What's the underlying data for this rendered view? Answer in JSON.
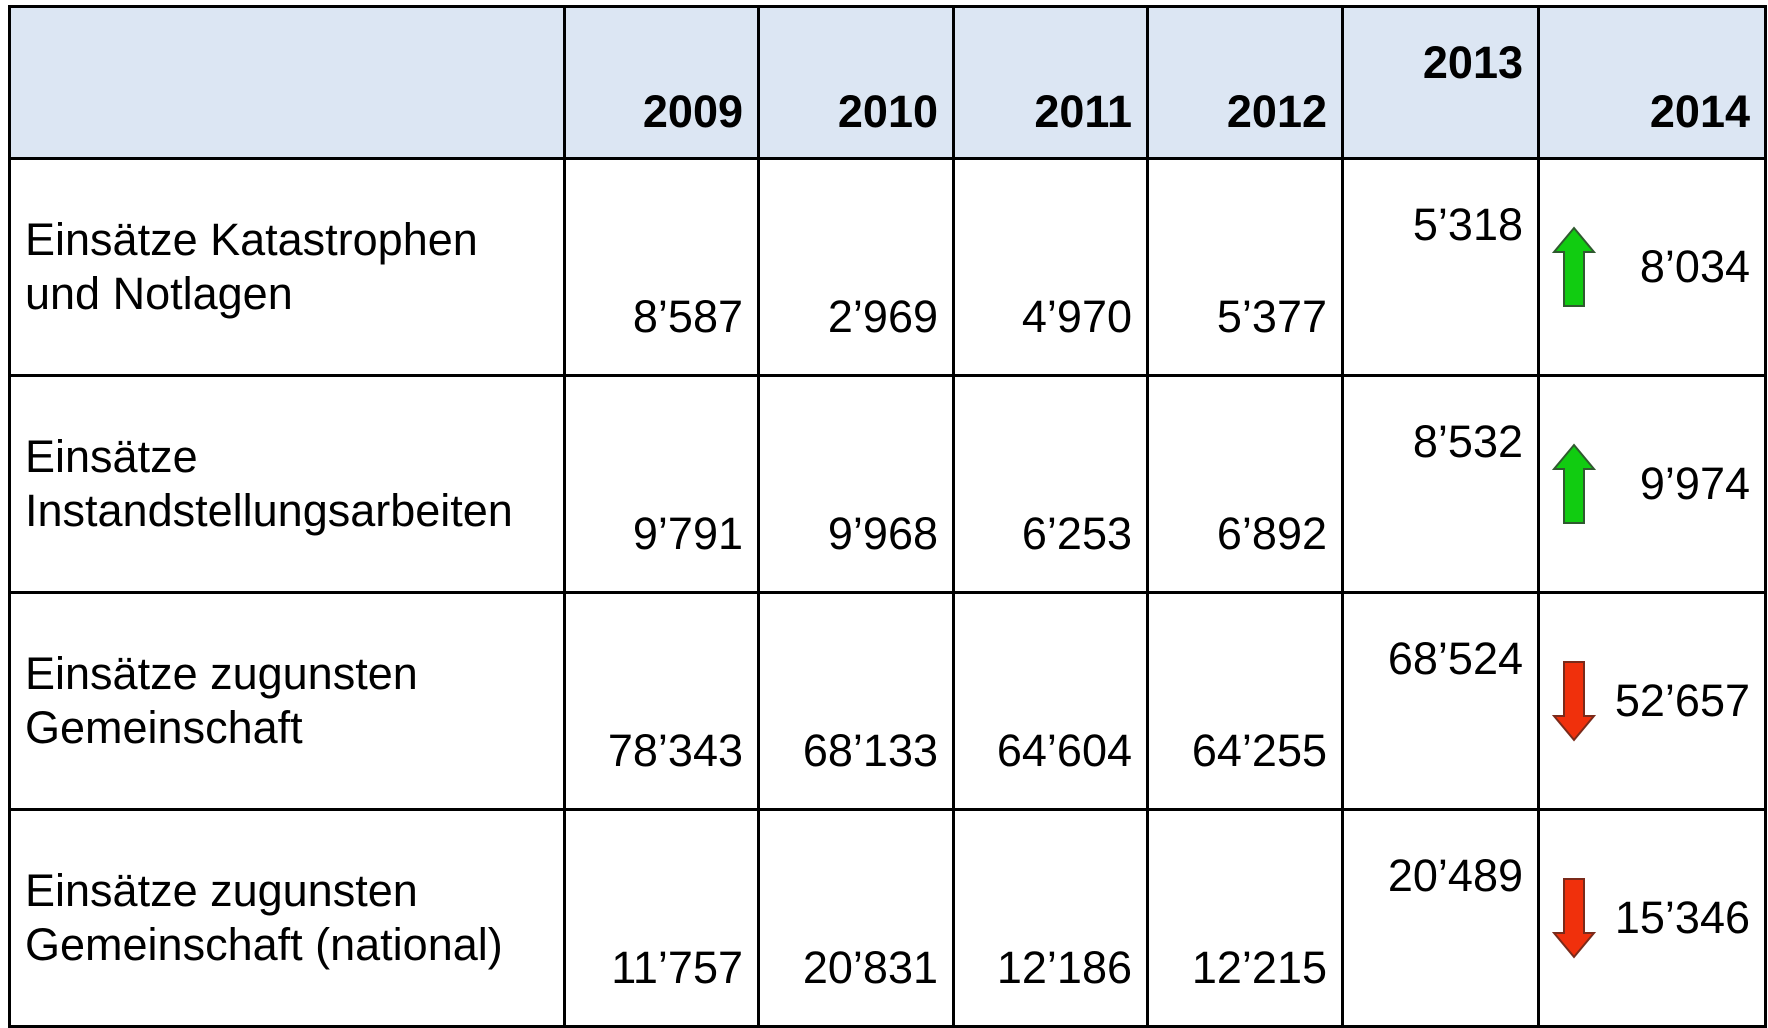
{
  "table": {
    "header": [
      "",
      "2009",
      "2010",
      "2011",
      "2012",
      "2013",
      "2014"
    ],
    "rows": [
      {
        "label": "Einsätze Katastrophen\nund Notlagen",
        "values": [
          "8’587",
          "2’969",
          "4’970",
          "5’377",
          "5’318",
          "8’034"
        ],
        "trend": "up"
      },
      {
        "label": "Einsätze\nInstandstellungsarbeiten",
        "values": [
          "9’791",
          "9’968",
          "6’253",
          "6’892",
          "8’532",
          "9’974"
        ],
        "trend": "up"
      },
      {
        "label": "Einsätze zugunsten\nGemeinschaft",
        "values": [
          "78’343",
          "68’133",
          "64’604",
          "64’255",
          "68’524",
          "52’657"
        ],
        "trend": "down"
      },
      {
        "label": "Einsätze zugunsten\nGemeinschaft (national)",
        "values": [
          "11’757",
          "20’831",
          "12’186",
          "12’215",
          "20’489",
          "15’346"
        ],
        "trend": "down"
      }
    ]
  }
}
